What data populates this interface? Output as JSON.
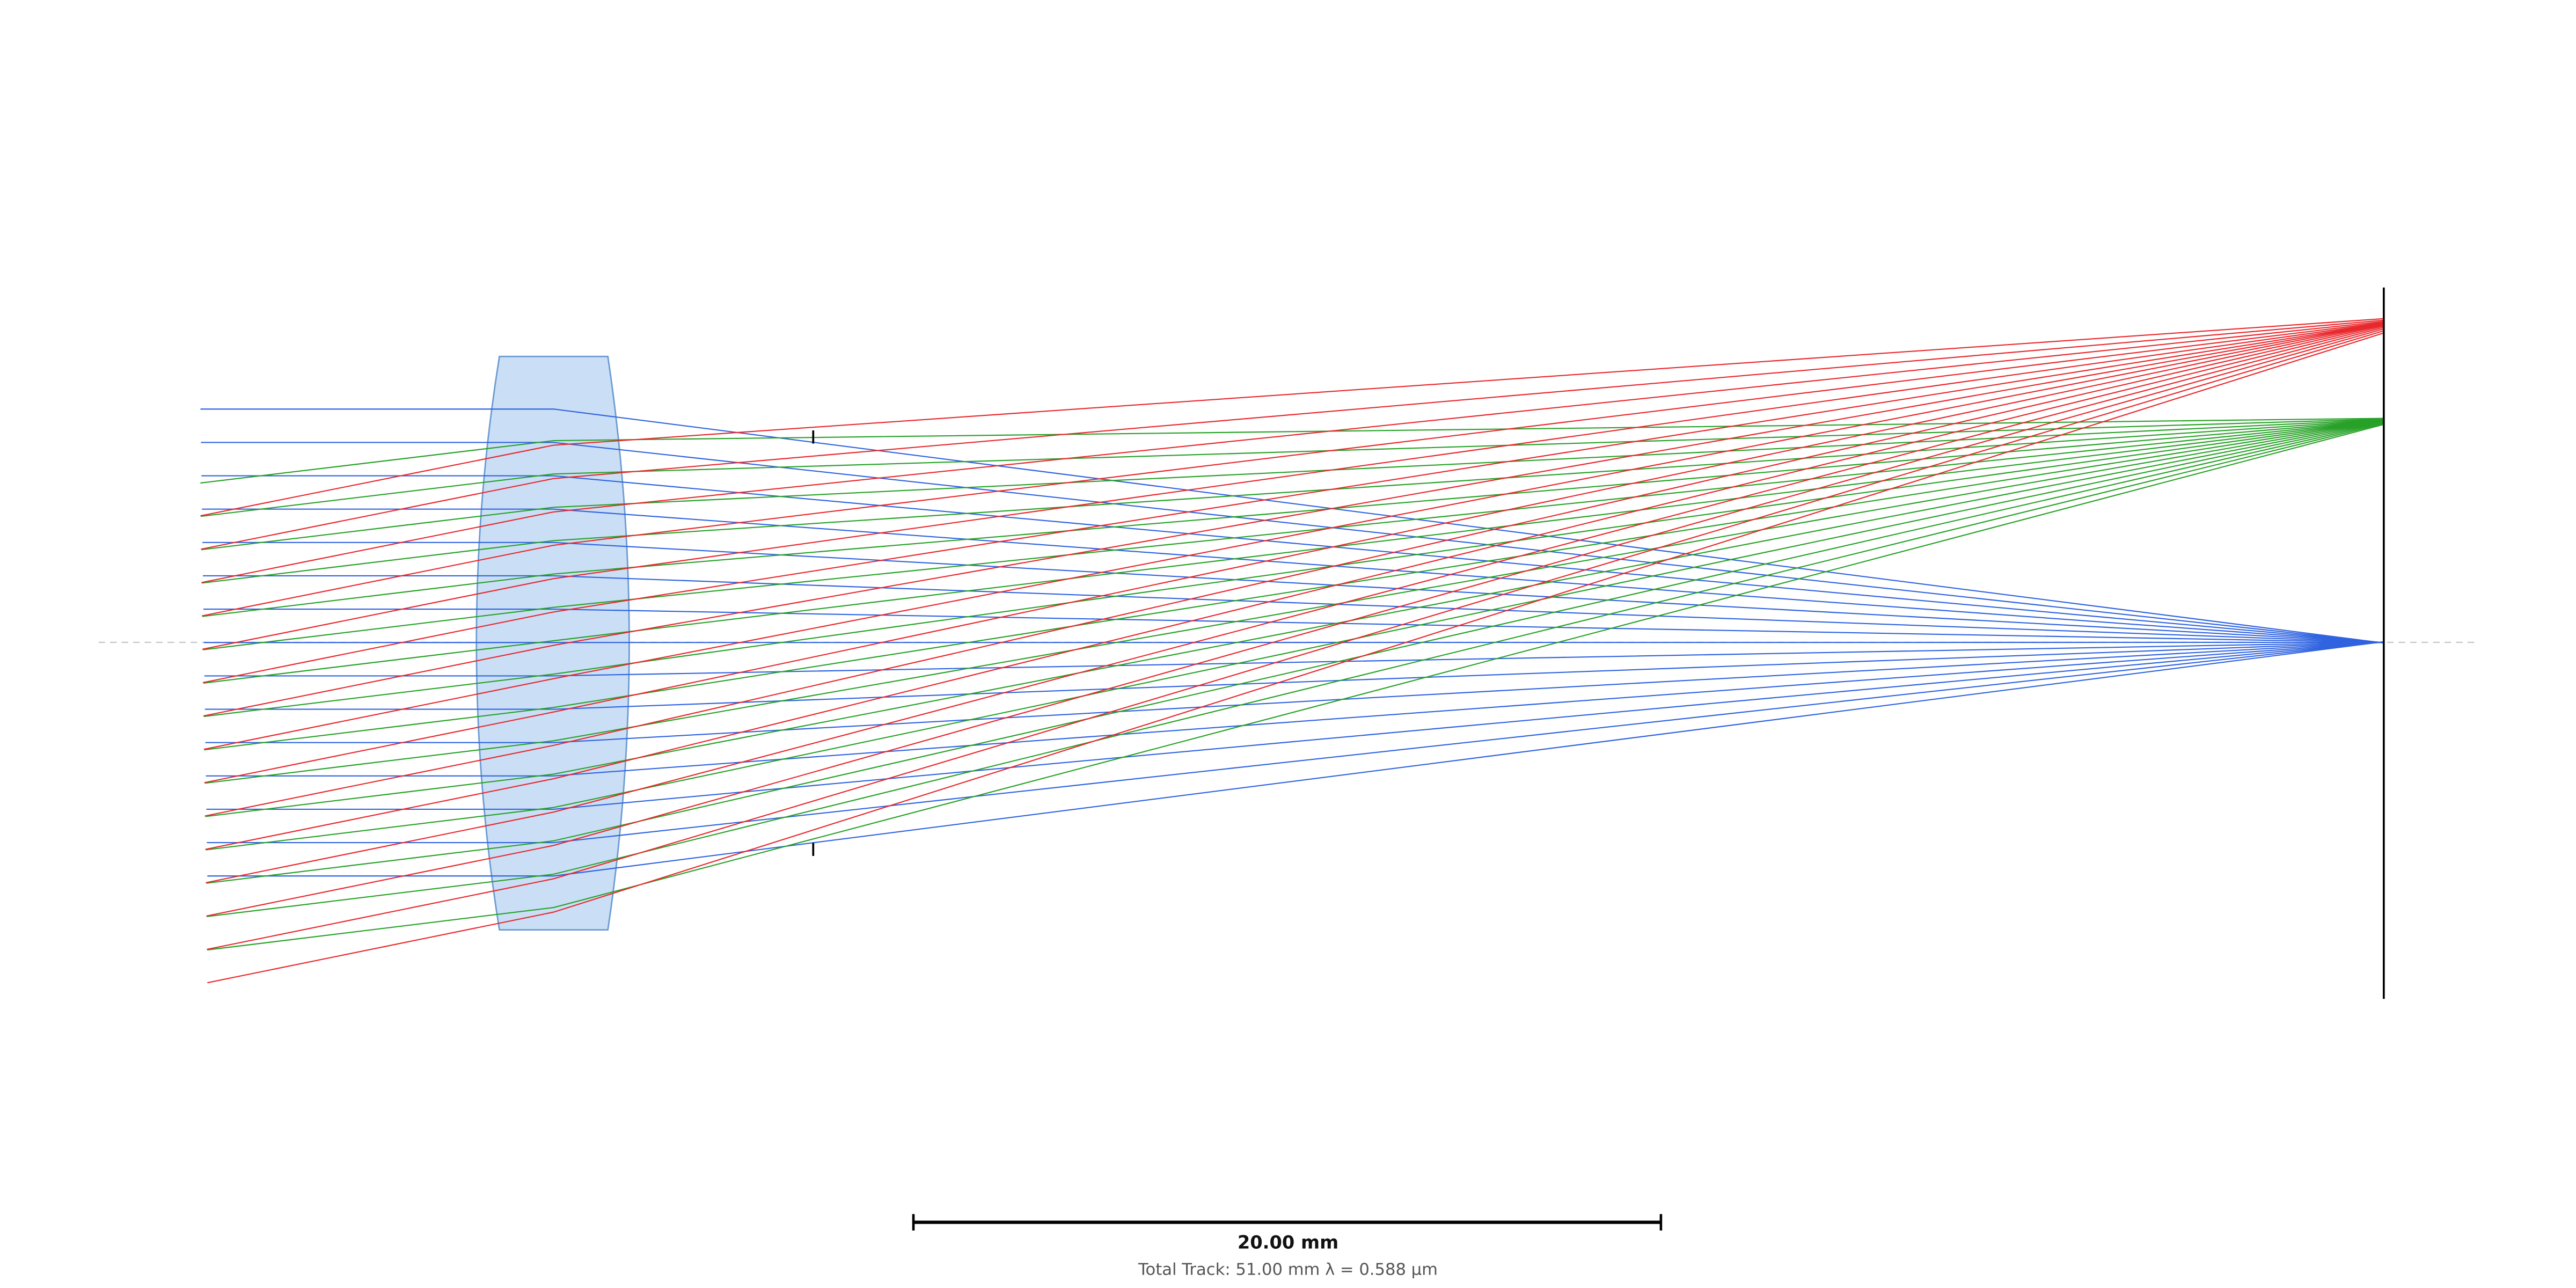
{
  "scale_bar": {
    "label": "20.00 mm"
  },
  "footer": {
    "text": "Total Track: 51.00 mm λ = 0.588 µm"
  }
}
